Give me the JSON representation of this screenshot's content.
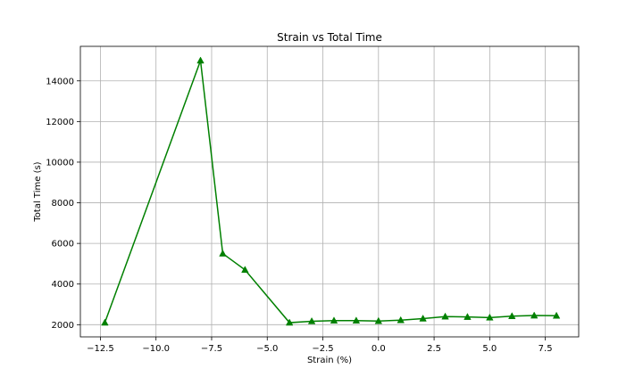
{
  "chart_data": {
    "type": "line",
    "title": "Strain vs Total Time",
    "xlabel": "Strain (%)",
    "ylabel": "Total Time (s)",
    "xlim": [
      -13.4,
      9.0
    ],
    "ylim": [
      1400,
      15700
    ],
    "grid": true,
    "x_ticks": [
      -12.5,
      -10.0,
      -7.5,
      -5.0,
      -2.5,
      0.0,
      2.5,
      5.0,
      7.5
    ],
    "x_tick_labels": [
      "−12.5",
      "−10.0",
      "−7.5",
      "−5.0",
      "−2.5",
      "0.0",
      "2.5",
      "5.0",
      "7.5"
    ],
    "y_ticks": [
      2000,
      4000,
      6000,
      8000,
      10000,
      12000,
      14000
    ],
    "y_tick_labels": [
      "2000",
      "4000",
      "6000",
      "8000",
      "10000",
      "12000",
      "14000"
    ],
    "series": [
      {
        "color": "#008000",
        "marker": "triangle",
        "x": [
          -12.3,
          -8,
          -7,
          -6,
          -4,
          -3,
          -2,
          -1,
          0,
          1,
          2,
          3,
          4,
          5,
          6,
          7,
          8
        ],
        "y": [
          2100,
          15000,
          5500,
          4700,
          2100,
          2170,
          2200,
          2200,
          2180,
          2220,
          2300,
          2400,
          2380,
          2350,
          2420,
          2450,
          2440
        ]
      }
    ]
  }
}
